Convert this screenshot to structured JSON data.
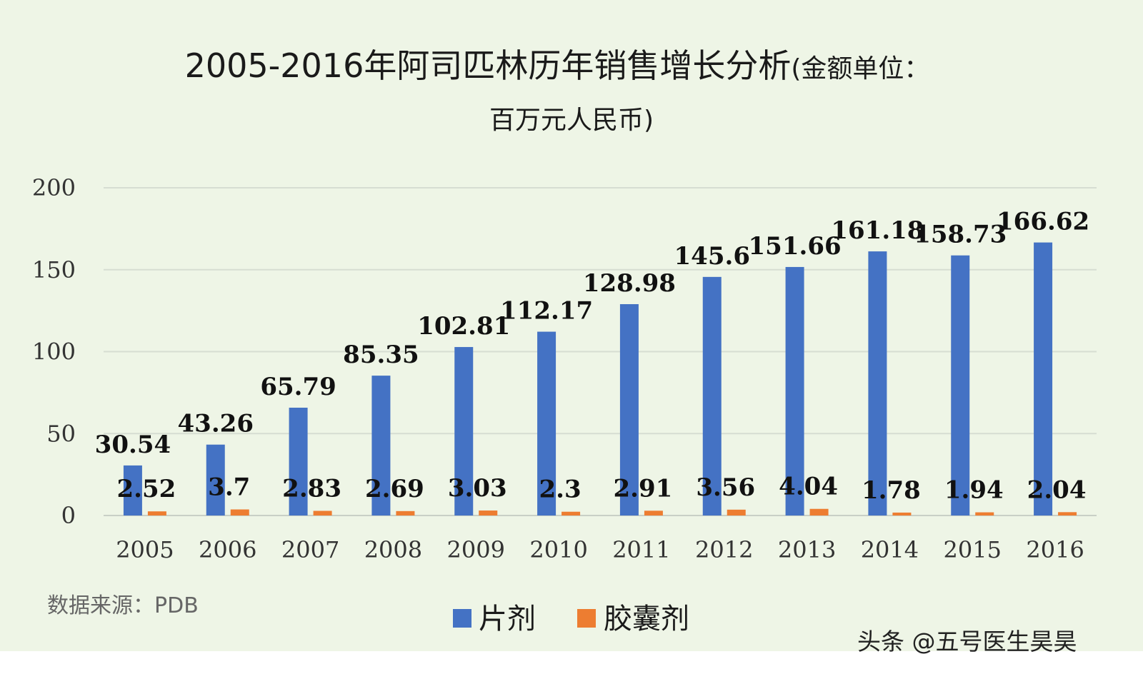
{
  "chart_data": {
    "type": "bar",
    "title": "2005-2016年阿司匹林历年销售增长分析",
    "title_unit_part1": "(金额单位：",
    "title_unit_part2": "百万元人民币)",
    "categories": [
      "2005",
      "2006",
      "2007",
      "2008",
      "2009",
      "2010",
      "2011",
      "2012",
      "2013",
      "2014",
      "2015",
      "2016"
    ],
    "series": [
      {
        "name": "片剂",
        "color": "#4472c4",
        "values": [
          30.54,
          43.26,
          65.79,
          85.35,
          102.81,
          112.17,
          128.98,
          145.6,
          151.66,
          161.18,
          158.73,
          166.62
        ],
        "labels": [
          "30.54",
          "43.26",
          "65.79",
          "85.35",
          "102.81",
          "112.17",
          "128.98",
          "145.6",
          "151.66",
          "161.18",
          "158.73",
          "166.62"
        ]
      },
      {
        "name": "胶囊剂",
        "color": "#ed7d31",
        "values": [
          2.52,
          3.7,
          2.83,
          2.69,
          3.03,
          2.3,
          2.91,
          3.56,
          4.04,
          1.78,
          1.94,
          2.04
        ],
        "labels": [
          "2.52",
          "3.7",
          "2.83",
          "2.69",
          "3.03",
          "2.3",
          "2.91",
          "3.56",
          "4.04",
          "1.78",
          "1.94",
          "2.04"
        ]
      }
    ],
    "yticks": [
      "0",
      "50",
      "100",
      "150",
      "200"
    ],
    "ylim": [
      0,
      200
    ],
    "grid": true,
    "legend_position": "bottom"
  },
  "source_note": "数据来源：PDB",
  "watermark": "头条 @五号医生昊昊"
}
